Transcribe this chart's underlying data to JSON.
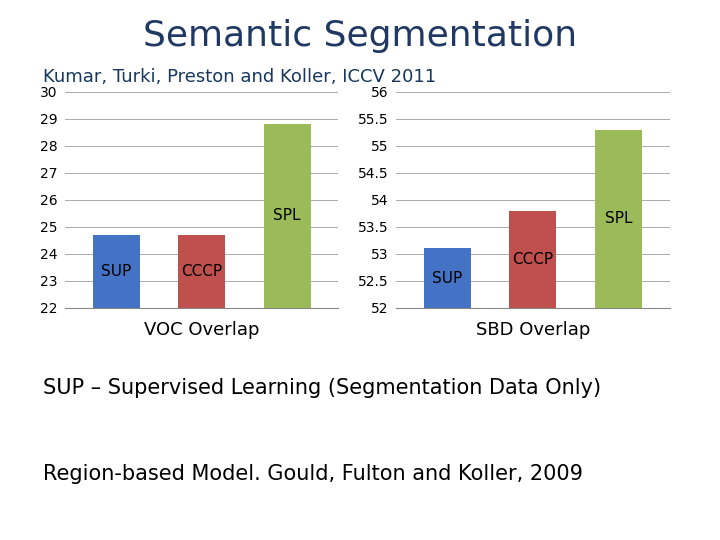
{
  "title": "Semantic Segmentation",
  "subtitle": "Kumar, Turki, Preston and Koller, ICCV 2011",
  "text1": "SUP – Supervised Learning (Segmentation Data Only)",
  "text2": "Region-based Model. Gould, Fulton and Koller, 2009",
  "chart1_title": "VOC Overlap",
  "chart2_title": "SBD Overlap",
  "categories": [
    "SUP",
    "CCCP",
    "SPL"
  ],
  "voc_values": [
    24.7,
    24.7,
    28.8
  ],
  "sbd_values": [
    53.1,
    53.8,
    55.3
  ],
  "voc_ylim": [
    22,
    30
  ],
  "voc_yticks": [
    22,
    23,
    24,
    25,
    26,
    27,
    28,
    29,
    30
  ],
  "voc_yticklabels": [
    "22",
    "23",
    "24",
    "25",
    "26",
    "27",
    "28",
    "29",
    "30"
  ],
  "sbd_ylim": [
    52,
    56
  ],
  "sbd_yticks": [
    52,
    52.5,
    53,
    53.5,
    54,
    54.5,
    55,
    55.5,
    56
  ],
  "sbd_yticklabels": [
    "52",
    "52.5",
    "53",
    "53.5",
    "54",
    "54.5",
    "55",
    "55.5",
    "56"
  ],
  "bar_colors": [
    "#4472C4",
    "#C0504D",
    "#9BBB59"
  ],
  "bar_labels": [
    "SUP",
    "CCCP",
    "SPL"
  ],
  "title_color": "#1F3864",
  "subtitle_color": "#17375E",
  "text_color": "#000000",
  "bg_color": "#FFFFFF",
  "grid_color": "#AAAAAA",
  "title_fontsize": 26,
  "subtitle_fontsize": 13,
  "chart_title_fontsize": 13,
  "bar_label_fontsize": 11,
  "text_fontsize": 15,
  "bar_width": 0.55
}
